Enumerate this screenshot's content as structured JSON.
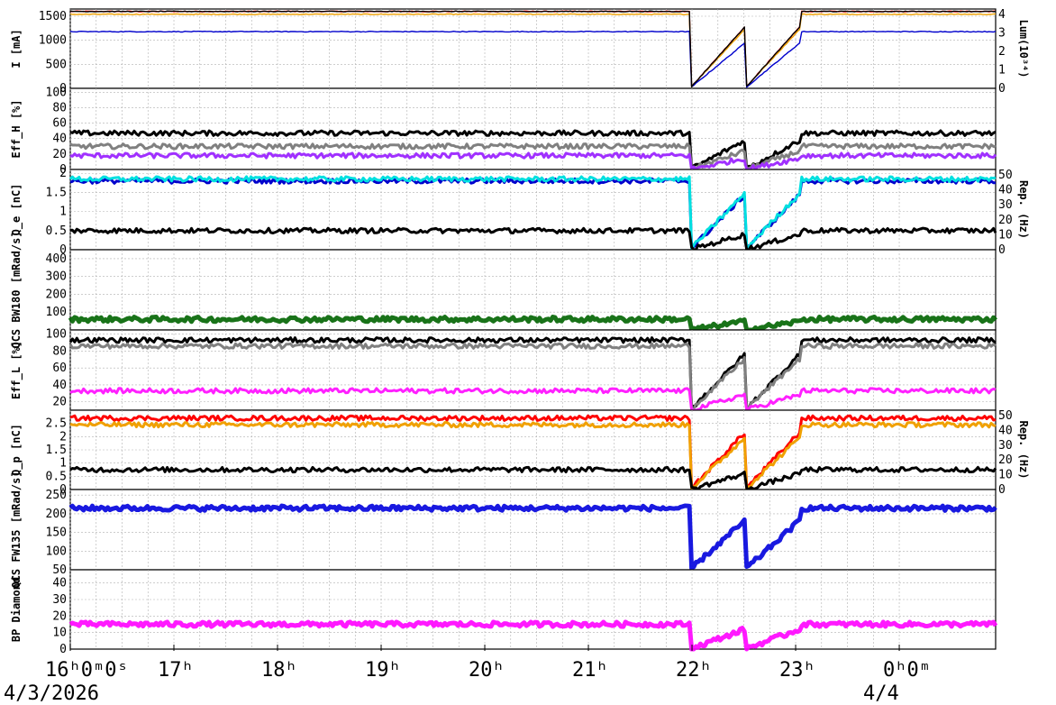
{
  "chart_data": {
    "type": "line",
    "x_axis": {
      "range_hours": [
        16.0,
        24.93
      ],
      "ticks": [
        {
          "t": 16,
          "label": "16ʰ0ᵐ0ˢ"
        },
        {
          "t": 17,
          "label": "17ʰ"
        },
        {
          "t": 18,
          "label": "18ʰ"
        },
        {
          "t": 19,
          "label": "19ʰ"
        },
        {
          "t": 20,
          "label": "20ʰ"
        },
        {
          "t": 21,
          "label": "21ʰ"
        },
        {
          "t": 22,
          "label": "22ʰ"
        },
        {
          "t": 23,
          "label": "23ʰ"
        },
        {
          "t": 24,
          "label": "0ʰ0ᵐ"
        }
      ],
      "dates": [
        {
          "t": 16,
          "label": "4/3/2026"
        },
        {
          "t": 24,
          "label": "4/4"
        }
      ]
    },
    "panels": [
      {
        "id": "current",
        "ylabel": "I [mA]",
        "yticks": [
          "0",
          "500",
          "1000",
          "1500"
        ],
        "ylim": [
          0,
          1650
        ],
        "y2label": "Lum(10³⁴)",
        "y2ticks": [
          "0",
          "1",
          "2",
          "3",
          "4"
        ],
        "series": [
          {
            "color": "#ff0000",
            "baseline": 1600
          },
          {
            "color": "#f0a000",
            "baseline": 1540
          },
          {
            "color": "#0000cc",
            "baseline": 1180
          },
          {
            "color": "#000000",
            "baseline": 1600
          }
        ]
      },
      {
        "id": "effh",
        "ylabel": "Eff_H [%]",
        "yticks": [
          "0",
          "20",
          "40",
          "60",
          "80",
          "100"
        ],
        "ylim": [
          0,
          105
        ],
        "series": [
          {
            "color": "#000000",
            "baseline": 47
          },
          {
            "color": "#808080",
            "baseline": 30
          },
          {
            "color": "#a030ff",
            "baseline": 18
          }
        ]
      },
      {
        "id": "qe",
        "ylabel": "Q_e [nC]",
        "yticks": [
          "0",
          "0.5",
          "1",
          "1.5",
          "2"
        ],
        "ylim": [
          0,
          2.1
        ],
        "y2label": "Rep. (Hz)",
        "y2ticks": [
          "0",
          "10",
          "20",
          "30",
          "40",
          "50"
        ],
        "series": [
          {
            "color": "#0000cc",
            "baseline": 1.8
          },
          {
            "color": "#00e0e0",
            "baseline": 1.85
          },
          {
            "color": "#000000",
            "baseline": 0.5
          }
        ]
      },
      {
        "id": "bw180",
        "ylabel": "QCS BW180 [mRad/s]",
        "yticks": [
          "100",
          "200",
          "300",
          "400"
        ],
        "ylim": [
          0,
          450
        ],
        "series": [
          {
            "color": "#006400",
            "baseline": 60
          }
        ]
      },
      {
        "id": "effl",
        "ylabel": "Eff_L [%]",
        "yticks": [
          "20",
          "40",
          "60",
          "80",
          "100"
        ],
        "ylim": [
          10,
          105
        ],
        "series": [
          {
            "color": "#000000",
            "baseline": 93
          },
          {
            "color": "#808080",
            "baseline": 86
          },
          {
            "color": "#ff20ff",
            "baseline": 33
          }
        ]
      },
      {
        "id": "qp",
        "ylabel": "Q_p [nC]",
        "yticks": [
          "0",
          "0.5",
          "1",
          "1.5",
          "2",
          "2.5"
        ],
        "ylim": [
          0,
          3.0
        ],
        "y2label": "Rep. (Hz)",
        "y2ticks": [
          "0",
          "10",
          "20",
          "30",
          "40",
          "50"
        ],
        "series": [
          {
            "color": "#ff0000",
            "baseline": 2.7
          },
          {
            "color": "#f0a000",
            "baseline": 2.45
          },
          {
            "color": "#000000",
            "baseline": 0.75
          }
        ]
      },
      {
        "id": "fw135",
        "ylabel": "QCS FW135 [mRad/s]",
        "yticks": [
          "50",
          "100",
          "150",
          "200",
          "250"
        ],
        "ylim": [
          50,
          265
        ],
        "series": [
          {
            "color": "#0000dd",
            "baseline": 215
          }
        ]
      },
      {
        "id": "bp",
        "ylabel": "BP Diamond",
        "yticks": [
          "0",
          "10",
          "20",
          "30",
          "40"
        ],
        "ylim": [
          0,
          48
        ],
        "series": [
          {
            "color": "#ff00ff",
            "baseline": 15
          }
        ]
      }
    ]
  }
}
